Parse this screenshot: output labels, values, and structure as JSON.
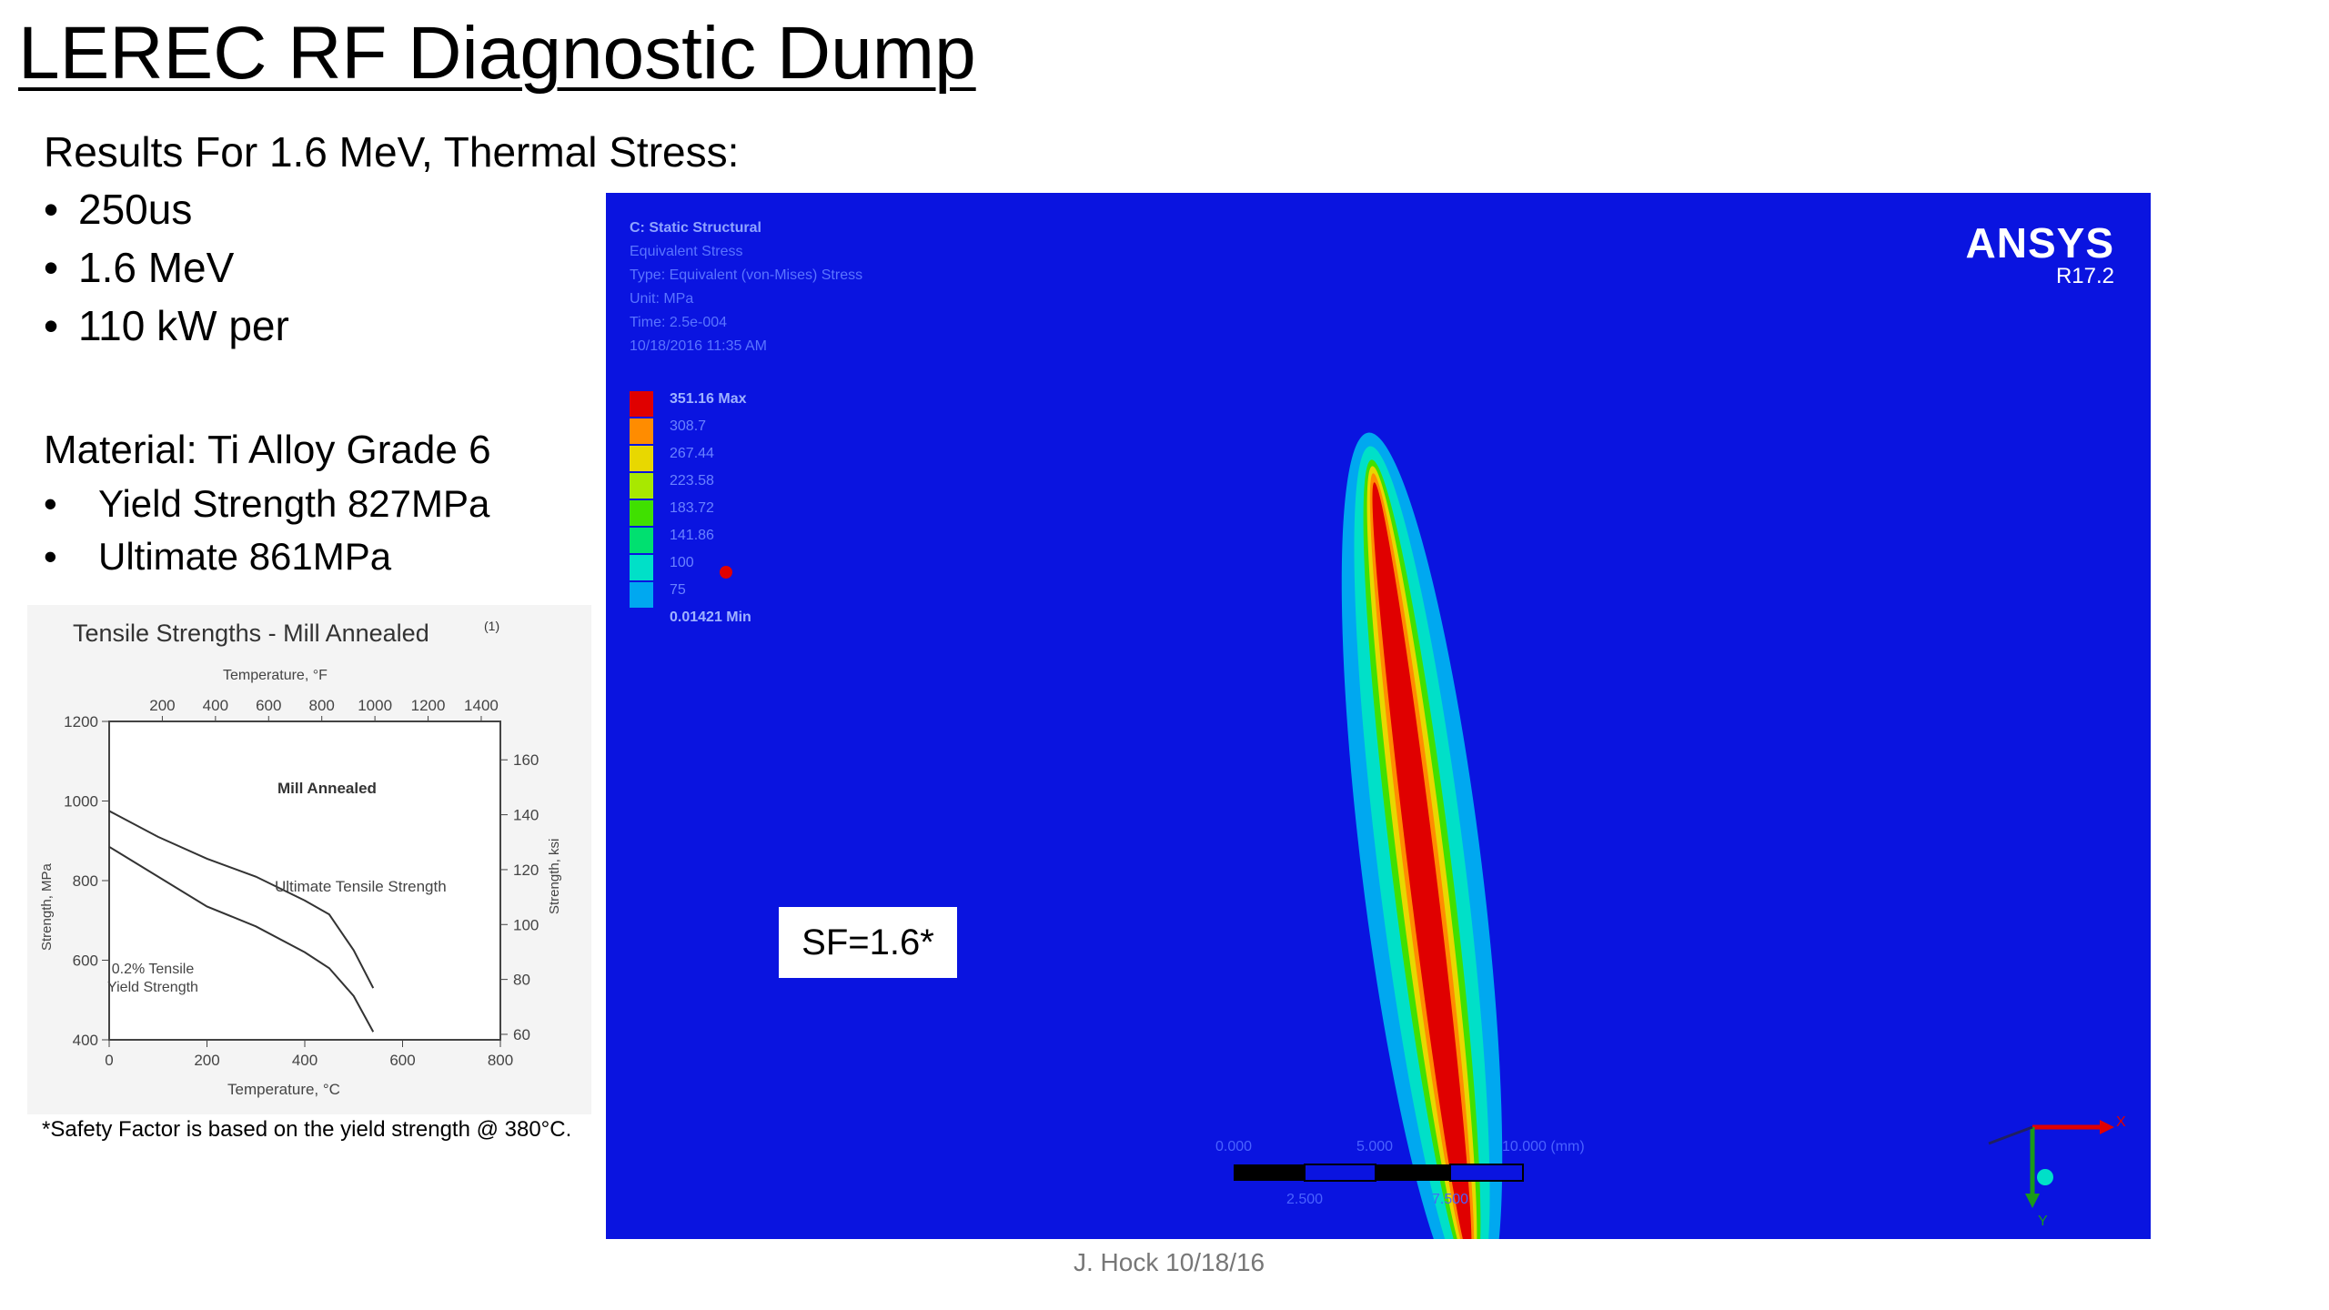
{
  "title": "LEREC RF Diagnostic Dump",
  "results_heading": "Results For 1.6 MeV, Thermal Stress:",
  "parameters": [
    "250us",
    "1.6 MeV",
    "110 kW per"
  ],
  "material": {
    "heading": "Material: Ti Alloy Grade 6",
    "properties": [
      "Yield Strength 827MPa",
      "Ultimate  861MPa"
    ]
  },
  "footnote": "*Safety Factor is based on the yield strength @ 380°C.",
  "chart_data": {
    "type": "line",
    "title": "Tensile Strengths - Mill Annealed",
    "title_note": "(1)",
    "annotation": "Mill Annealed",
    "xlabel": "Temperature, °C",
    "x2label": "Temperature, °F",
    "ylabel": "Strength, MPa",
    "y2label": "Strength, ksi",
    "xlim": [
      0,
      800
    ],
    "ylim": [
      400,
      1200
    ],
    "x2lim": [
      0,
      1472
    ],
    "y2lim": [
      58,
      174
    ],
    "x_ticks": [
      "0",
      "200",
      "400",
      "600",
      "800"
    ],
    "y_ticks": [
      "400",
      "600",
      "800",
      "1000",
      "1200"
    ],
    "x2_ticks": [
      "200",
      "400",
      "600",
      "800",
      "1000",
      "1200",
      "1400"
    ],
    "y2_ticks": [
      "60",
      "80",
      "100",
      "120",
      "140",
      "160"
    ],
    "series": [
      {
        "name": "Ultimate Tensile Strength",
        "x": [
          0,
          100,
          200,
          300,
          400,
          450,
          500,
          540
        ],
        "y": [
          975,
          910,
          855,
          810,
          750,
          715,
          625,
          530
        ]
      },
      {
        "name": "0.2% Tensile Yield Strength",
        "x": [
          0,
          100,
          200,
          300,
          400,
          450,
          500,
          540
        ],
        "y": [
          885,
          810,
          735,
          685,
          620,
          580,
          510,
          420
        ]
      }
    ],
    "series_label_lines": [
      [
        "Ultimate Tensile Strength"
      ],
      [
        "0.2% Tensile",
        "Yield Strength"
      ]
    ]
  },
  "simulation": {
    "logo": "ANSYS",
    "version": "R17.2",
    "header": {
      "analysis": "C: Static Structural",
      "result": "Equivalent Stress",
      "type": "Type: Equivalent (von-Mises) Stress",
      "unit": "Unit: MPa",
      "time": "Time: 2.5e-004",
      "date": "10/18/2016 11:35 AM"
    },
    "legend_colors": [
      "#e00000",
      "#ff8c00",
      "#e8d800",
      "#a8e800",
      "#40e000",
      "#00e070",
      "#00e0c8",
      "#00a8f0",
      "#0a14e0"
    ],
    "legend_labels": [
      "351.16 Max",
      "308.7",
      "267.44",
      "223.58",
      "183.72",
      "141.86",
      "100",
      "75",
      "0.01421 Min"
    ],
    "safety_factor": "SF=1.6*",
    "scale_labels_top": [
      "0.000",
      "5.000",
      "10.000 (mm)"
    ],
    "scale_labels_bottom": [
      "2.500",
      "7.500"
    ],
    "axis_x": "X",
    "axis_y": "Y"
  },
  "author": "J. Hock 10/18/16"
}
